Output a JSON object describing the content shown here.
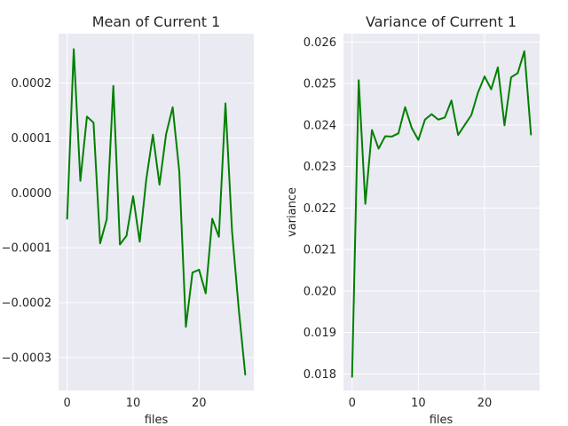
{
  "chart_data": [
    {
      "type": "line",
      "title": "Mean of Current 1",
      "xlabel": "files",
      "ylabel": "",
      "xlim": [
        -1.3,
        28.3
      ],
      "ylim": [
        -0.00036,
        0.00029
      ],
      "grid": true,
      "xticks": [
        0,
        10,
        20
      ],
      "xtick_labels": [
        "0",
        "10",
        "20"
      ],
      "yticks": [
        -0.0003,
        -0.0002,
        -0.0001,
        0.0,
        0.0001,
        0.0002
      ],
      "ytick_labels": [
        "−0.0003",
        "−0.0002",
        "−0.0001",
        "0.0000",
        "0.0001",
        "0.0002"
      ],
      "color": "#008000",
      "x": [
        0,
        1,
        2,
        3,
        4,
        5,
        6,
        7,
        8,
        9,
        10,
        11,
        12,
        13,
        14,
        15,
        16,
        17,
        18,
        19,
        20,
        21,
        22,
        23,
        24,
        25,
        26,
        27
      ],
      "values": [
        -4.7e-05,
        0.000262,
        2.2e-05,
        0.000139,
        0.000128,
        -9.2e-05,
        -4.8e-05,
        0.000195,
        -9.4e-05,
        -7.8e-05,
        -6e-06,
        -8.9e-05,
        2.5e-05,
        0.000106,
        1.5e-05,
        0.000107,
        0.000156,
        3.9e-05,
        -0.000244,
        -0.000145,
        -0.00014,
        -0.000183,
        -4.7e-05,
        -8e-05,
        0.000163,
        -7e-05,
        -0.00021,
        -0.000331
      ]
    },
    {
      "type": "line",
      "title": "Variance of Current 1",
      "xlabel": "files",
      "ylabel": "variance",
      "xlim": [
        -1.3,
        28.3
      ],
      "ylim": [
        0.0176,
        0.0262
      ],
      "grid": true,
      "xticks": [
        0,
        10,
        20
      ],
      "xtick_labels": [
        "0",
        "10",
        "20"
      ],
      "yticks": [
        0.018,
        0.019,
        0.02,
        0.021,
        0.022,
        0.023,
        0.024,
        0.025,
        0.026
      ],
      "ytick_labels": [
        "0.018",
        "0.019",
        "0.020",
        "0.021",
        "0.022",
        "0.023",
        "0.024",
        "0.025",
        "0.026"
      ],
      "color": "#008000",
      "x": [
        0,
        1,
        2,
        3,
        4,
        5,
        6,
        7,
        8,
        9,
        10,
        11,
        12,
        13,
        14,
        15,
        16,
        17,
        18,
        19,
        20,
        21,
        22,
        23,
        24,
        25,
        26,
        27
      ],
      "values": [
        0.01793,
        0.02508,
        0.0221,
        0.02388,
        0.02343,
        0.02373,
        0.02372,
        0.0238,
        0.02443,
        0.02393,
        0.02364,
        0.02413,
        0.02426,
        0.02413,
        0.02418,
        0.02459,
        0.02376,
        0.024,
        0.02424,
        0.02478,
        0.02517,
        0.02486,
        0.02539,
        0.02399,
        0.02515,
        0.02525,
        0.02578,
        0.02377
      ]
    }
  ]
}
